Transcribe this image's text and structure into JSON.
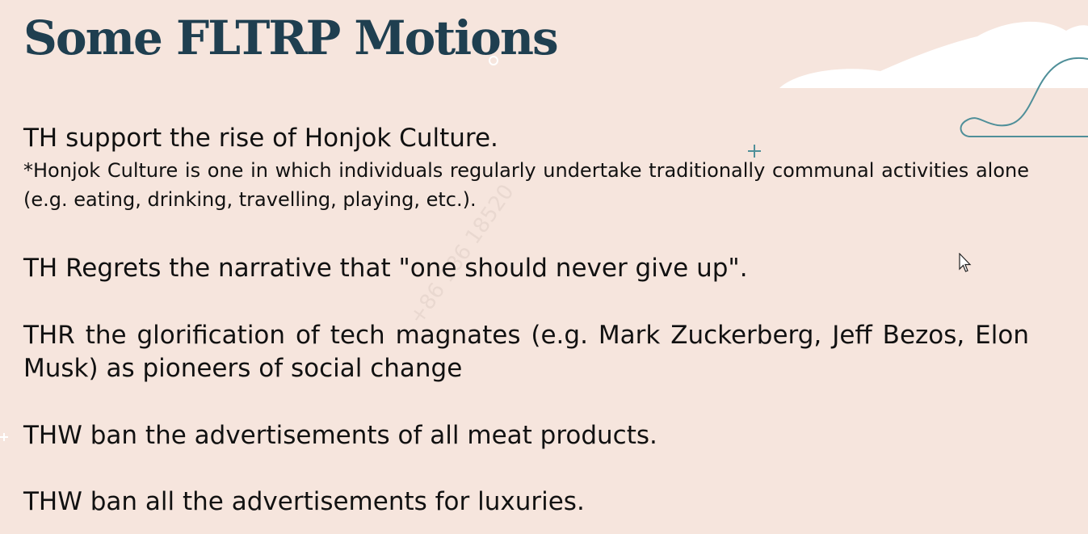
{
  "slide": {
    "title": "Some FLTRP Motions",
    "motions": [
      {
        "text": "TH support the rise of Honjok Culture.",
        "note": "*Honjok Culture is one in which individuals regularly undertake traditionally communal activities alone (e.g. eating, drinking, travelling, playing, etc.)."
      },
      {
        "text": "TH Regrets the narrative that \"one should never give up\"."
      },
      {
        "text": "THR the glorification of tech magnates (e.g. Mark Zuckerberg, Jeff Bezos, Elon Musk) as pioneers of social change"
      },
      {
        "text": "THW ban the advertisements of all meat products."
      },
      {
        "text": "THW ban all the advertisements for luxuries."
      }
    ]
  },
  "colors": {
    "background": "#f6e5dd",
    "title": "#1f3f50",
    "text": "#111111",
    "cloud": "#ffffff",
    "accent_line": "#4f8f99"
  }
}
